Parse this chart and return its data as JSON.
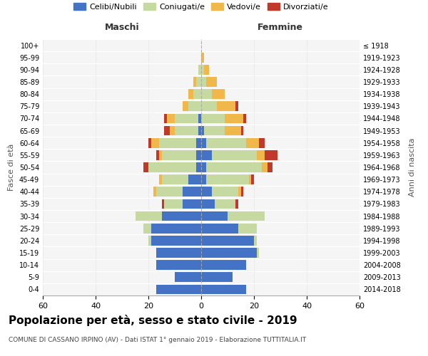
{
  "age_groups": [
    "0-4",
    "5-9",
    "10-14",
    "15-19",
    "20-24",
    "25-29",
    "30-34",
    "35-39",
    "40-44",
    "45-49",
    "50-54",
    "55-59",
    "60-64",
    "65-69",
    "70-74",
    "75-79",
    "80-84",
    "85-89",
    "90-94",
    "95-99",
    "100+"
  ],
  "birth_years": [
    "2014-2018",
    "2009-2013",
    "2004-2008",
    "1999-2003",
    "1994-1998",
    "1989-1993",
    "1984-1988",
    "1979-1983",
    "1974-1978",
    "1969-1973",
    "1964-1968",
    "1959-1963",
    "1954-1958",
    "1949-1953",
    "1944-1948",
    "1939-1943",
    "1934-1938",
    "1929-1933",
    "1924-1928",
    "1919-1923",
    "≤ 1918"
  ],
  "maschi": {
    "celibi": [
      17,
      10,
      17,
      17,
      19,
      19,
      15,
      7,
      7,
      5,
      2,
      2,
      2,
      1,
      1,
      0,
      0,
      0,
      0,
      0,
      0
    ],
    "coniugati": [
      0,
      0,
      0,
      0,
      1,
      3,
      10,
      7,
      10,
      10,
      18,
      13,
      14,
      9,
      9,
      5,
      3,
      2,
      1,
      0,
      0
    ],
    "vedovi": [
      0,
      0,
      0,
      0,
      0,
      0,
      0,
      0,
      1,
      1,
      0,
      1,
      3,
      2,
      3,
      2,
      2,
      1,
      0,
      0,
      0
    ],
    "divorziati": [
      0,
      0,
      0,
      0,
      0,
      0,
      0,
      1,
      0,
      0,
      2,
      1,
      1,
      2,
      1,
      0,
      0,
      0,
      0,
      0,
      0
    ]
  },
  "femmine": {
    "nubili": [
      17,
      12,
      17,
      21,
      20,
      14,
      10,
      5,
      4,
      2,
      2,
      4,
      2,
      1,
      0,
      0,
      0,
      0,
      0,
      0,
      0
    ],
    "coniugate": [
      0,
      0,
      0,
      1,
      1,
      7,
      14,
      8,
      10,
      16,
      21,
      17,
      15,
      8,
      9,
      6,
      4,
      2,
      1,
      0,
      0
    ],
    "vedove": [
      0,
      0,
      0,
      0,
      0,
      0,
      0,
      0,
      1,
      1,
      2,
      3,
      5,
      6,
      7,
      7,
      5,
      4,
      2,
      1,
      0
    ],
    "divorziate": [
      0,
      0,
      0,
      0,
      0,
      0,
      0,
      1,
      1,
      1,
      2,
      5,
      2,
      1,
      1,
      1,
      0,
      0,
      0,
      0,
      0
    ]
  },
  "colors": {
    "celibi": "#4472C4",
    "coniugati": "#c5d9a0",
    "vedovi": "#f0b84b",
    "divorziati": "#c0392b"
  },
  "xlim": 60,
  "title": "Popolazione per età, sesso e stato civile - 2019",
  "subtitle": "COMUNE DI CASSANO IRPINO (AV) - Dati ISTAT 1° gennaio 2019 - Elaborazione TUTTITALIA.IT",
  "ylabel_left": "Fasce di età",
  "ylabel_right": "Anni di nascita",
  "xlabel_maschi": "Maschi",
  "xlabel_femmine": "Femmine"
}
